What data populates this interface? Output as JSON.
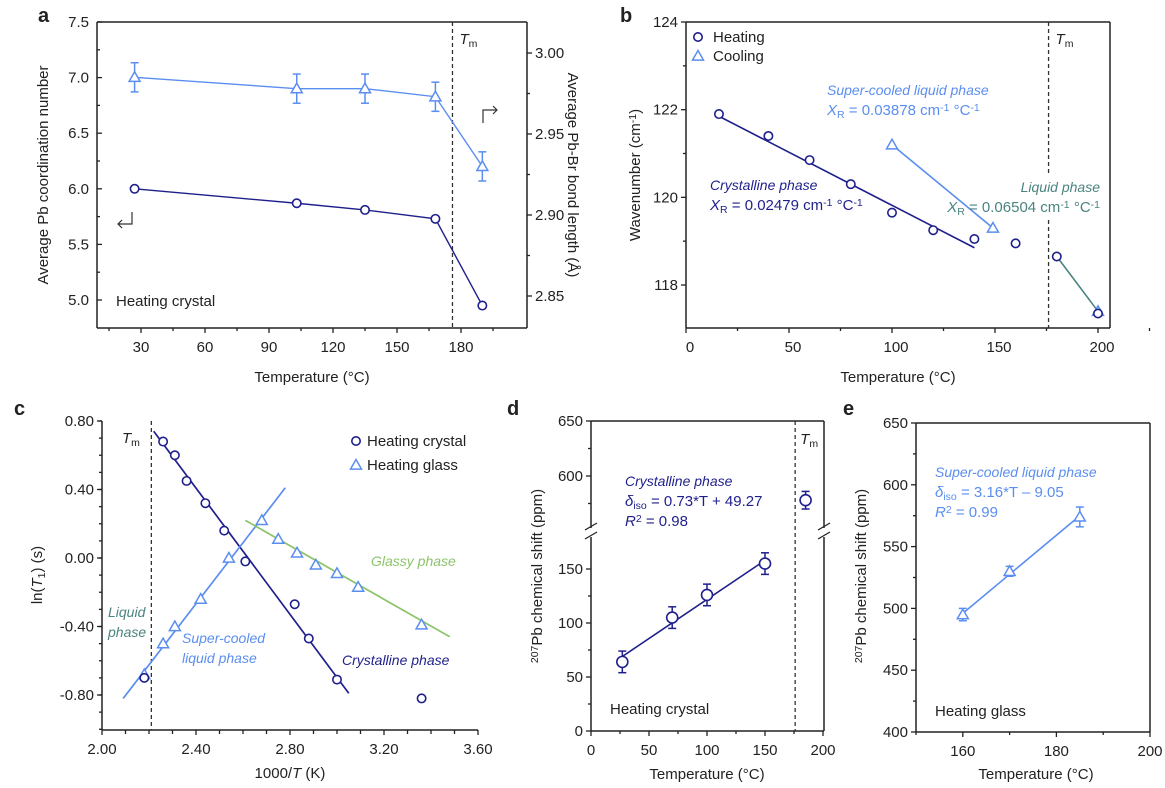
{
  "colors": {
    "dark": "#1f1f8c",
    "light": "#5b8ef0",
    "teal": "#4a8480",
    "green": "#8cc46a",
    "axis": "#222222"
  },
  "chart_data": [
    {
      "id": "a",
      "panel_label": "a",
      "type": "line",
      "xlabel": "Temperature (°C)",
      "ylabel": "Average Pb coordination number",
      "ylabel_right": "Average Pb-Br bond length (Å)",
      "xlim": [
        10,
        206
      ],
      "ylim": [
        4.75,
        7.5
      ],
      "ylim_right": [
        2.83,
        3.019
      ],
      "xticks": [
        30,
        60,
        90,
        120,
        150,
        180
      ],
      "yticks": [
        "5.0",
        "5.5",
        "6.0",
        "6.5",
        "7.0",
        "7.5"
      ],
      "yticks_right": [
        "2.85",
        "2.90",
        "2.95",
        "3.00"
      ],
      "tm_x": 176,
      "tm_label": "T",
      "tm_sub": "m",
      "annotation": "Heating crystal",
      "series": [
        {
          "name": "Coordination number",
          "axis": "left",
          "marker": "circle",
          "color": "dark",
          "x": [
            27,
            103,
            135,
            168,
            190
          ],
          "y": [
            6.0,
            5.87,
            5.81,
            5.73,
            4.95
          ]
        },
        {
          "name": "Pb-Br bond length",
          "axis": "right",
          "marker": "triangle",
          "color": "light",
          "x": [
            27,
            103,
            135,
            168,
            190
          ],
          "y": [
            2.985,
            2.978,
            2.978,
            2.973,
            2.93
          ],
          "err": [
            0.009,
            0.009,
            0.009,
            0.009,
            0.009
          ]
        }
      ]
    },
    {
      "id": "b",
      "panel_label": "b",
      "type": "scatter",
      "xlabel": "Temperature (°C)",
      "ylabel": "Wavenumber (cm",
      "ylabel_sup": "-1",
      "ylabel_end": ")",
      "xlim": [
        0,
        226
      ],
      "ylim": [
        117,
        124
      ],
      "xticks": [
        0,
        50,
        100,
        150,
        200
      ],
      "yticks": [
        "118",
        "120",
        "122",
        "124"
      ],
      "tm_x": 176,
      "tm_label": "T",
      "tm_sub": "m",
      "legend": [
        "Heating",
        "Cooling"
      ],
      "legend_position": "top-left",
      "series": [
        {
          "name": "Heating",
          "marker": "circle",
          "color": "dark",
          "x": [
            16,
            40,
            60,
            80,
            100,
            120,
            140,
            160,
            180,
            200
          ],
          "y": [
            121.9,
            121.4,
            120.85,
            120.3,
            119.65,
            119.25,
            119.05,
            118.95,
            118.65,
            117.35
          ]
        },
        {
          "name": "Cooling",
          "marker": "triangle",
          "color": "light",
          "x": [
            100,
            149,
            200
          ],
          "y": [
            121.2,
            119.3,
            117.4
          ]
        }
      ],
      "fits": [
        {
          "name": "Crystalline phase",
          "color": "dark",
          "x": [
            16,
            140
          ],
          "y": [
            121.85,
            118.85
          ]
        },
        {
          "name": "Super-cooled liquid phase",
          "color": "light",
          "x": [
            100,
            149
          ],
          "y": [
            121.2,
            119.3
          ]
        },
        {
          "name": "Liquid phase",
          "color": "teal",
          "x": [
            180,
            200
          ],
          "y": [
            118.65,
            117.4
          ]
        }
      ],
      "annotations": [
        {
          "title": "Super-cooled liquid phase",
          "value": "0.03878",
          "color": "light"
        },
        {
          "title": "Crystalline phase",
          "value": "0.02479",
          "color": "dark"
        },
        {
          "title": "Liquid phase",
          "value": "0.06504",
          "color": "teal"
        }
      ],
      "xr_symbol": "X",
      "xr_sub": "R",
      "xr_unit_a": " cm",
      "xr_unit_b": " °C",
      "xr_sup": "-1"
    },
    {
      "id": "c",
      "panel_label": "c",
      "type": "scatter",
      "xlabel_a": "1000/",
      "xlabel_b": "T",
      "xlabel_c": " (K)",
      "ylabel_a": "ln(",
      "ylabel_b": "T",
      "ylabel_sub": "1",
      "ylabel_c": ") (s)",
      "xlim": [
        2.0,
        3.6
      ],
      "ylim": [
        -1.0,
        0.8
      ],
      "xticks": [
        "2.00",
        "2.40",
        "2.80",
        "3.20",
        "3.60"
      ],
      "yticks": [
        "-0.80",
        "-0.40",
        "0.00",
        "0.40",
        "0.80"
      ],
      "tm_x": 2.21,
      "tm_label": "T",
      "tm_sub": "m",
      "legend": [
        "Heating crystal",
        "Heating glass"
      ],
      "legend_position": "top-right",
      "series": [
        {
          "name": "Heating crystal",
          "marker": "circle",
          "color": "dark",
          "x": [
            2.18,
            2.26,
            2.31,
            2.36,
            2.44,
            2.52,
            2.61,
            2.82,
            2.88,
            3.0,
            3.36
          ],
          "y": [
            -0.7,
            0.68,
            0.6,
            0.45,
            0.32,
            0.16,
            -0.02,
            -0.27,
            -0.47,
            -0.71,
            -0.82
          ]
        },
        {
          "name": "Heating glass",
          "marker": "triangle",
          "color": "light",
          "x": [
            2.18,
            2.26,
            2.31,
            2.42,
            2.54,
            2.68,
            2.75,
            2.83,
            2.91,
            3.0,
            3.09,
            3.36
          ],
          "y": [
            -0.68,
            -0.5,
            -0.4,
            -0.24,
            0.0,
            0.22,
            0.11,
            0.03,
            -0.04,
            -0.09,
            -0.17,
            -0.39
          ]
        }
      ],
      "fits": [
        {
          "name": "Crystalline phase",
          "color": "dark",
          "x": [
            2.22,
            3.05
          ],
          "y": [
            0.74,
            -0.79
          ]
        },
        {
          "name": "Super-cooled liquid phase",
          "color": "light",
          "x": [
            2.09,
            2.78
          ],
          "y": [
            -0.82,
            0.41
          ]
        },
        {
          "name": "Glassy phase",
          "color": "green",
          "x": [
            2.61,
            3.48
          ],
          "y": [
            0.22,
            -0.46
          ]
        }
      ],
      "annotations": {
        "liquid_1": "Liquid",
        "liquid_2": "phase",
        "scl_1": "Super-cooled",
        "scl_2": "liquid phase",
        "crystalline": "Crystalline phase",
        "glassy": "Glassy phase"
      }
    },
    {
      "id": "d",
      "panel_label": "d",
      "type": "scatter",
      "xlabel": "Temperature (°C)",
      "ylabel_sup": "207",
      "ylabel": "Pb chemical shift (ppm)",
      "xlim": [
        0,
        200
      ],
      "ylim_lower": [
        0,
        175
      ],
      "ylim_upper": [
        555,
        650
      ],
      "axis_break": true,
      "xticks": [
        0,
        50,
        100,
        150,
        200
      ],
      "yticks_lower": [
        "0",
        "50",
        "100",
        "150"
      ],
      "yticks_upper": [
        "600",
        "650"
      ],
      "tm_x": 176,
      "tm_label": "T",
      "tm_sub": "m",
      "annotation": "Heating crystal",
      "fit_title": "Crystalline phase",
      "fit_eq_a": "δ",
      "fit_eq_sub": "iso",
      "fit_eq_b": " = 0.73*T + 49.27",
      "fit_r_a": "R",
      "fit_r_sup": "2",
      "fit_r_b": " = 0.98",
      "series": [
        {
          "name": "Heating crystal",
          "marker": "circle",
          "color": "dark",
          "x": [
            27,
            70,
            100,
            150,
            185
          ],
          "y": [
            64,
            105,
            126,
            155,
            578
          ],
          "err": [
            10,
            10,
            10,
            10,
            8
          ]
        }
      ],
      "fit": {
        "x": [
          27,
          150
        ],
        "y": [
          69,
          158
        ]
      }
    },
    {
      "id": "e",
      "panel_label": "e",
      "type": "scatter",
      "xlabel": "Temperature (°C)",
      "ylabel_sup": "207",
      "ylabel": "Pb chemical shift (ppm)",
      "xlim": [
        150,
        200
      ],
      "ylim": [
        400,
        650
      ],
      "xticks": [
        160,
        180,
        200
      ],
      "yticks": [
        "400",
        "450",
        "500",
        "550",
        "600",
        "650"
      ],
      "annotation": "Heating glass",
      "fit_title": "Super-cooled liquid phase",
      "fit_eq_a": "δ",
      "fit_eq_sub": "iso",
      "fit_eq_b": " = 3.16*T – 9.05",
      "fit_r_a": "R",
      "fit_r_sup": "2",
      "fit_r_b": " = 0.99",
      "series": [
        {
          "name": "Heating glass",
          "marker": "triangle",
          "color": "light",
          "x": [
            160,
            170,
            185
          ],
          "y": [
            495,
            530,
            574
          ],
          "err": [
            5,
            4,
            8
          ]
        }
      ],
      "fit": {
        "x": [
          160,
          185
        ],
        "y": [
          496,
          575
        ]
      }
    }
  ]
}
